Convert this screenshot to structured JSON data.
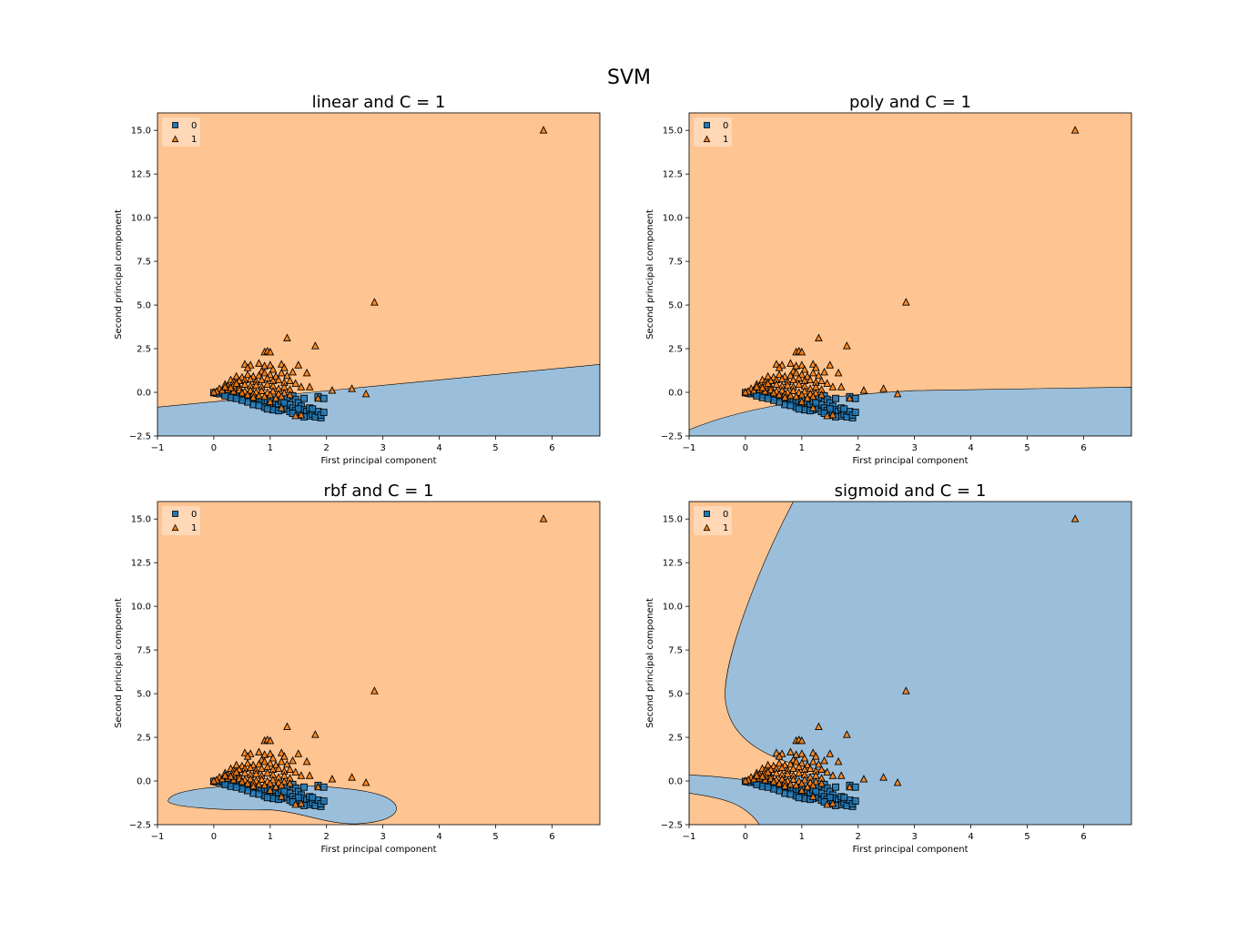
{
  "figure": {
    "suptitle": "SVM"
  },
  "colors": {
    "class0_region": "#9bbfdb",
    "class1_region": "#fec491",
    "class0_marker": "#1f77b4",
    "class1_marker": "#ff7f0e",
    "edge": "#000000"
  },
  "chart_data": [
    {
      "type": "scatter",
      "title": "linear and C = 1",
      "xlabel": "First principal component",
      "ylabel": "Second principal component",
      "xlim": [
        -1,
        6.85
      ],
      "ylim": [
        -2.5,
        16.0
      ],
      "xticks": [
        "−1",
        "0",
        "1",
        "2",
        "3",
        "4",
        "5",
        "6"
      ],
      "yticks": [
        "−2.5",
        "0.0",
        "2.5",
        "5.0",
        "7.5",
        "10.0",
        "12.5",
        "15.0"
      ],
      "legend": {
        "placement": "upper-left",
        "entries": [
          "0",
          "1"
        ]
      },
      "region_description": "class 1 above a straight boundary from (-1,-0.85) to (6.85,1.6)"
    },
    {
      "type": "scatter",
      "title": "poly and C = 1",
      "xlabel": "First principal component",
      "ylabel": "Second principal component",
      "xlim": [
        -1,
        6.85
      ],
      "ylim": [
        -2.5,
        16.0
      ],
      "xticks": [
        "−1",
        "0",
        "1",
        "2",
        "3",
        "4",
        "5",
        "6"
      ],
      "yticks": [
        "−2.5",
        "0.0",
        "2.5",
        "5.0",
        "7.5",
        "10.0",
        "12.5",
        "15.0"
      ],
      "legend": {
        "placement": "upper-left",
        "entries": [
          "0",
          "1"
        ]
      },
      "region_description": "class 1 above a curved boundary rising from (-1,-2.15) and flattening near 0.2"
    },
    {
      "type": "scatter",
      "title": "rbf and C = 1",
      "xlabel": "First principal component",
      "ylabel": "Second principal component",
      "xlim": [
        -1,
        6.85
      ],
      "ylim": [
        -2.5,
        16.0
      ],
      "xticks": [
        "−1",
        "0",
        "1",
        "2",
        "3",
        "4",
        "5",
        "6"
      ],
      "yticks": [
        "−2.5",
        "0.0",
        "2.5",
        "5.0",
        "7.5",
        "10.0",
        "12.5",
        "15.0"
      ],
      "legend": {
        "placement": "upper-left",
        "entries": [
          "0",
          "1"
        ]
      },
      "region_description": "class 0 inside an elongated closed blob around x 0.2 to 3.2, y -2.4 to -0.2"
    },
    {
      "type": "scatter",
      "title": "sigmoid and C = 1",
      "xlabel": "First principal component",
      "ylabel": "Second principal component",
      "xlim": [
        -1,
        6.85
      ],
      "ylim": [
        -2.5,
        16.0
      ],
      "xticks": [
        "−1",
        "0",
        "1",
        "2",
        "3",
        "4",
        "5",
        "6"
      ],
      "yticks": [
        "−2.5",
        "0.0",
        "2.5",
        "5.0",
        "7.5",
        "10.0",
        "12.5",
        "15.0"
      ],
      "legend": {
        "placement": "upper-left",
        "entries": [
          "0",
          "1"
        ]
      },
      "region_description": "class 0 in most of the plane; class 1 in a left band and lower-left corner"
    }
  ],
  "points": {
    "class0": [
      [
        0.0,
        -0.02
      ],
      [
        0.05,
        -0.05
      ],
      [
        0.1,
        -0.08
      ],
      [
        0.15,
        0.0
      ],
      [
        0.2,
        -0.1
      ],
      [
        0.25,
        -0.05
      ],
      [
        0.3,
        -0.12
      ],
      [
        0.35,
        -0.15
      ],
      [
        0.4,
        -0.2
      ],
      [
        0.45,
        -0.1
      ],
      [
        0.5,
        -0.25
      ],
      [
        0.55,
        -0.3
      ],
      [
        0.6,
        -0.22
      ],
      [
        0.65,
        -0.35
      ],
      [
        0.7,
        -0.4
      ],
      [
        0.75,
        -0.3
      ],
      [
        0.8,
        -0.5
      ],
      [
        0.85,
        -0.45
      ],
      [
        0.9,
        -0.6
      ],
      [
        0.95,
        -0.55
      ],
      [
        1.0,
        -0.7
      ],
      [
        1.0,
        -0.4
      ],
      [
        1.05,
        -0.8
      ],
      [
        1.1,
        -0.6
      ],
      [
        1.1,
        -0.9
      ],
      [
        1.15,
        -0.75
      ],
      [
        1.2,
        -0.5
      ],
      [
        1.2,
        -1.0
      ],
      [
        1.25,
        -0.85
      ],
      [
        1.3,
        -0.3
      ],
      [
        1.3,
        -0.95
      ],
      [
        1.35,
        -0.7
      ],
      [
        1.35,
        -1.1
      ],
      [
        1.4,
        -0.2
      ],
      [
        1.4,
        -0.9
      ],
      [
        1.45,
        -0.4
      ],
      [
        1.45,
        -1.05
      ],
      [
        1.5,
        -0.6
      ],
      [
        1.5,
        -1.2
      ],
      [
        1.55,
        -0.8
      ],
      [
        1.55,
        -1.3
      ],
      [
        1.6,
        -0.35
      ],
      [
        1.6,
        -1.0
      ],
      [
        1.65,
        -1.1
      ],
      [
        1.7,
        -1.35
      ],
      [
        1.7,
        -0.9
      ],
      [
        1.75,
        -1.25
      ],
      [
        1.8,
        -1.4
      ],
      [
        1.85,
        -1.1
      ],
      [
        1.85,
        -0.25
      ],
      [
        1.9,
        -1.45
      ],
      [
        1.9,
        -1.3
      ],
      [
        1.95,
        -1.15
      ],
      [
        1.95,
        -0.35
      ],
      [
        0.7,
        -0.7
      ],
      [
        0.9,
        -0.85
      ],
      [
        1.05,
        -1.0
      ],
      [
        0.6,
        -0.55
      ],
      [
        0.5,
        -0.45
      ],
      [
        0.8,
        -0.75
      ],
      [
        1.25,
        -0.6
      ],
      [
        1.15,
        -1.05
      ],
      [
        0.95,
        -0.95
      ],
      [
        1.5,
        -0.95
      ],
      [
        1.6,
        -1.4
      ],
      [
        1.4,
        -1.2
      ],
      [
        0.3,
        -0.3
      ],
      [
        0.4,
        -0.35
      ],
      [
        0.2,
        -0.2
      ],
      [
        1.75,
        -0.95
      ]
    ],
    "class1": [
      [
        5.85,
        15.0
      ],
      [
        2.85,
        5.15
      ],
      [
        1.3,
        3.1
      ],
      [
        1.8,
        2.65
      ],
      [
        0.9,
        2.3
      ],
      [
        0.95,
        2.35
      ],
      [
        1.0,
        2.3
      ],
      [
        0.55,
        1.6
      ],
      [
        0.65,
        1.55
      ],
      [
        0.8,
        1.65
      ],
      [
        0.9,
        1.5
      ],
      [
        1.0,
        1.55
      ],
      [
        1.2,
        1.6
      ],
      [
        1.5,
        1.55
      ],
      [
        0.6,
        1.4
      ],
      [
        0.85,
        1.2
      ],
      [
        1.05,
        1.3
      ],
      [
        1.25,
        1.4
      ],
      [
        1.4,
        1.15
      ],
      [
        1.65,
        1.1
      ],
      [
        0.4,
        0.9
      ],
      [
        0.5,
        0.85
      ],
      [
        0.6,
        1.0
      ],
      [
        0.7,
        0.9
      ],
      [
        0.8,
        0.95
      ],
      [
        0.9,
        1.1
      ],
      [
        1.0,
        1.0
      ],
      [
        1.1,
        0.9
      ],
      [
        1.2,
        1.1
      ],
      [
        1.3,
        0.95
      ],
      [
        0.3,
        0.7
      ],
      [
        0.35,
        0.6
      ],
      [
        0.45,
        0.65
      ],
      [
        0.55,
        0.7
      ],
      [
        0.65,
        0.75
      ],
      [
        0.75,
        0.6
      ],
      [
        0.85,
        0.7
      ],
      [
        0.95,
        0.8
      ],
      [
        1.05,
        0.65
      ],
      [
        1.15,
        0.7
      ],
      [
        1.25,
        0.55
      ],
      [
        1.35,
        0.65
      ],
      [
        1.45,
        0.5
      ],
      [
        1.55,
        0.3
      ],
      [
        1.7,
        0.3
      ],
      [
        0.2,
        0.45
      ],
      [
        0.25,
        0.35
      ],
      [
        0.35,
        0.4
      ],
      [
        0.45,
        0.3
      ],
      [
        0.55,
        0.45
      ],
      [
        0.65,
        0.35
      ],
      [
        0.75,
        0.4
      ],
      [
        0.85,
        0.3
      ],
      [
        0.95,
        0.45
      ],
      [
        1.05,
        0.35
      ],
      [
        1.15,
        0.2
      ],
      [
        1.25,
        0.3
      ],
      [
        1.35,
        0.15
      ],
      [
        0.1,
        0.2
      ],
      [
        0.15,
        0.1
      ],
      [
        0.25,
        0.15
      ],
      [
        0.35,
        0.05
      ],
      [
        0.45,
        0.12
      ],
      [
        0.55,
        0.05
      ],
      [
        0.65,
        0.1
      ],
      [
        0.75,
        0.0
      ],
      [
        0.85,
        0.08
      ],
      [
        0.95,
        -0.02
      ],
      [
        1.05,
        0.05
      ],
      [
        1.15,
        -0.1
      ],
      [
        1.25,
        -0.05
      ],
      [
        1.35,
        -0.15
      ],
      [
        0.5,
        -0.05
      ],
      [
        0.6,
        -0.15
      ],
      [
        0.7,
        -0.1
      ],
      [
        0.8,
        -0.2
      ],
      [
        0.9,
        -0.25
      ],
      [
        1.0,
        -0.15
      ],
      [
        1.1,
        -0.35
      ],
      [
        1.2,
        -0.25
      ],
      [
        0.3,
        0.25
      ],
      [
        0.4,
        0.5
      ],
      [
        0.2,
        0.3
      ],
      [
        2.1,
        0.1
      ],
      [
        2.45,
        0.2
      ],
      [
        2.7,
        -0.1
      ],
      [
        1.55,
        -1.3
      ],
      [
        1.45,
        -1.35
      ],
      [
        1.2,
        -0.9
      ],
      [
        1.0,
        -0.55
      ],
      [
        0.7,
        -0.3
      ],
      [
        1.85,
        -0.35
      ],
      [
        0.05,
        0.05
      ],
      [
        0.0,
        0.0
      ]
    ]
  }
}
